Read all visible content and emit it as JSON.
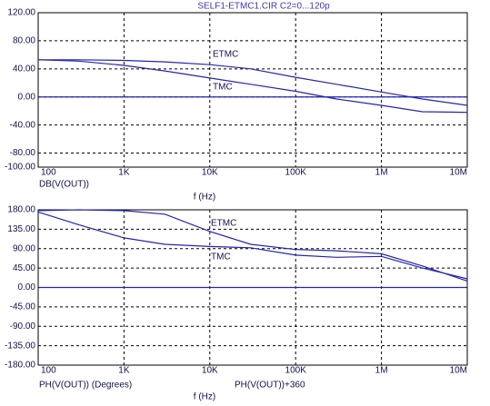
{
  "chart_data": [
    {
      "type": "line",
      "title": "SELF1-ETMC1.CIR C2=0...120p",
      "x": [
        100,
        300,
        1000,
        3000,
        10000,
        30000,
        100000,
        300000,
        1000000,
        3000000,
        10000000
      ],
      "xlim": [
        100,
        10000000
      ],
      "log_x": true,
      "xticks": [
        {
          "value": 100,
          "label": "100"
        },
        {
          "value": 1000,
          "label": "1K"
        },
        {
          "value": 10000,
          "label": "10K"
        },
        {
          "value": 100000,
          "label": "100K"
        },
        {
          "value": 1000000,
          "label": "1M"
        },
        {
          "value": 10000000,
          "label": "10M"
        }
      ],
      "ylim": [
        -100,
        120
      ],
      "yticks": [
        {
          "value": 120,
          "label": "120.00"
        },
        {
          "value": 80,
          "label": "80.00"
        },
        {
          "value": 40,
          "label": "40.00"
        },
        {
          "value": 0,
          "label": "0.00"
        },
        {
          "value": -40,
          "label": "-40.00"
        },
        {
          "value": -80,
          "label": "-80.00"
        },
        {
          "value": -100,
          "label": "-100.00"
        }
      ],
      "grid": true,
      "xlabel": "f (Hz)",
      "ylabels": [
        "DB(V(OUT))"
      ],
      "series": [
        {
          "name": "ETMC",
          "color": "#2424b4",
          "values": [
            53,
            53,
            52,
            50,
            46,
            40,
            28,
            18,
            7,
            -3,
            -12
          ]
        },
        {
          "name": "TMC",
          "color": "#2424b4",
          "values": [
            53,
            51,
            45,
            37,
            27,
            18,
            8,
            -3,
            -12,
            -21,
            -22
          ]
        }
      ]
    },
    {
      "type": "line",
      "x": [
        100,
        300,
        1000,
        3000,
        10000,
        30000,
        100000,
        300000,
        1000000,
        3000000,
        10000000
      ],
      "xlim": [
        100,
        10000000
      ],
      "log_x": true,
      "xticks": [
        {
          "value": 100,
          "label": "100"
        },
        {
          "value": 1000,
          "label": "1K"
        },
        {
          "value": 10000,
          "label": "10K"
        },
        {
          "value": 100000,
          "label": "100K"
        },
        {
          "value": 1000000,
          "label": "1M"
        },
        {
          "value": 10000000,
          "label": "10M"
        }
      ],
      "ylim": [
        -180,
        180
      ],
      "yticks": [
        {
          "value": 180,
          "label": "180.00"
        },
        {
          "value": 135,
          "label": "135.00"
        },
        {
          "value": 90,
          "label": "90.00"
        },
        {
          "value": 45,
          "label": "45.00"
        },
        {
          "value": 0,
          "label": "0.00"
        },
        {
          "value": -45,
          "label": "-45.00"
        },
        {
          "value": -90,
          "label": "-90.00"
        },
        {
          "value": -135,
          "label": "-135.00"
        },
        {
          "value": -180,
          "label": "-180.00"
        }
      ],
      "grid": true,
      "xlabel": "f (Hz)",
      "ylabels": [
        "PH(V(OUT)) (Degrees)",
        "PH(V(OUT))+360"
      ],
      "series": [
        {
          "name": "ETMC",
          "color": "#2424b4",
          "values": [
            178,
            180,
            178,
            170,
            130,
            100,
            88,
            85,
            78,
            50,
            15
          ]
        },
        {
          "name": "TMC",
          "color": "#2424b4",
          "values": [
            175,
            145,
            115,
            100,
            95,
            92,
            75,
            70,
            72,
            45,
            20
          ]
        }
      ]
    }
  ]
}
